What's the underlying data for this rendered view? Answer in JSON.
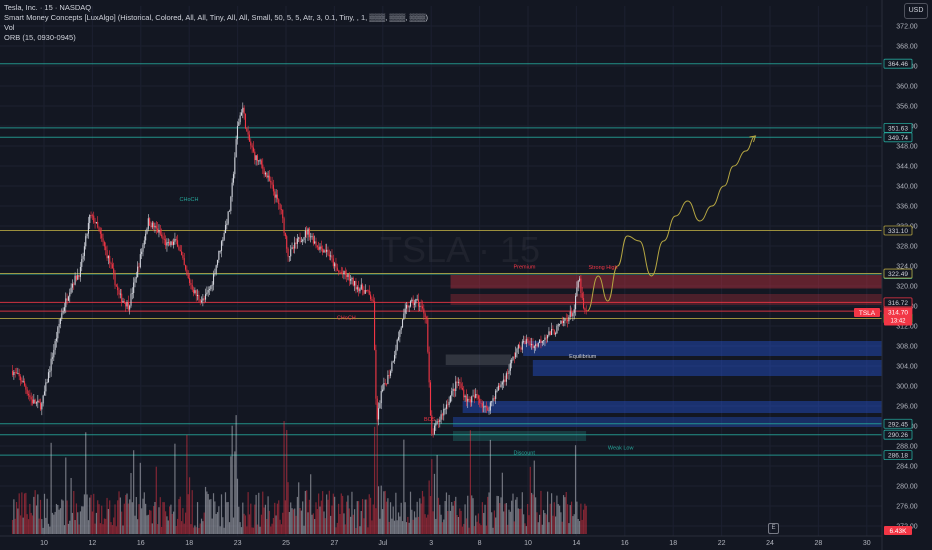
{
  "legend": {
    "title": "Tesla, Inc. · 15 · NASDAQ",
    "indicator_smc": "Smart Money Concepts [LuxAlgo] (Historical, Colored, All, All, Tiny, All, All, Small, 50, 5, 5, Atr, 3, 0.1, Tiny, , 1, ▒▒▒, ▒▒▒, ▒▒▒)",
    "indicator_vol": "Vol",
    "indicator_orb": "ORB (15, 0930-0945)"
  },
  "currency_button": "USD",
  "e_button": "E",
  "watermark": "TSLA · 15",
  "colors": {
    "background": "#131722",
    "up": "#d1d4dc",
    "down": "#f23645",
    "teal": "#26a69a",
    "olive": "#b5a642",
    "blue_zone": "#2962ff",
    "red_zone": "#f23645"
  },
  "chart_data": {
    "type": "candlestick",
    "ylim": [
      270,
      376
    ],
    "price_ticks": [
      272,
      276,
      280,
      284,
      288,
      292,
      296,
      300,
      304,
      308,
      312,
      316,
      320,
      324,
      328,
      332,
      336,
      340,
      344,
      348,
      352,
      356,
      360,
      364,
      368,
      372
    ],
    "date_ticks": [
      {
        "label": "10",
        "day": 9
      },
      {
        "label": "12",
        "day": 11
      },
      {
        "label": "16",
        "day": 13
      },
      {
        "label": "18",
        "day": 15
      },
      {
        "label": "23",
        "day": 17
      },
      {
        "label": "25",
        "day": 19
      },
      {
        "label": "27",
        "day": 21
      },
      {
        "label": "Jul",
        "day": 23
      },
      {
        "label": "3",
        "day": 25
      },
      {
        "label": "8",
        "day": 27
      },
      {
        "label": "10",
        "day": 29
      },
      {
        "label": "14",
        "day": 31
      },
      {
        "label": "16",
        "day": 33
      },
      {
        "label": "18",
        "day": 35
      },
      {
        "label": "22",
        "day": 37
      },
      {
        "label": "24",
        "day": 39
      },
      {
        "label": "28",
        "day": 41
      },
      {
        "label": "30",
        "day": 43
      }
    ],
    "candle_start_day": 7.7,
    "candle_end_day": 31.45,
    "price_path": [
      [
        7.7,
        303
      ],
      [
        8.1,
        301
      ],
      [
        8.5,
        297
      ],
      [
        8.9,
        296
      ],
      [
        9.3,
        305
      ],
      [
        9.7,
        314
      ],
      [
        10.1,
        320
      ],
      [
        10.5,
        323
      ],
      [
        10.9,
        334
      ],
      [
        11.1,
        333
      ],
      [
        11.4,
        329
      ],
      [
        11.7,
        325
      ],
      [
        12.1,
        318
      ],
      [
        12.5,
        316
      ],
      [
        12.9,
        324
      ],
      [
        13.3,
        333
      ],
      [
        13.7,
        331
      ],
      [
        14.1,
        328
      ],
      [
        14.5,
        329
      ],
      [
        14.9,
        322
      ],
      [
        15.3,
        318
      ],
      [
        15.6,
        317
      ],
      [
        15.9,
        320
      ],
      [
        16.3,
        328
      ],
      [
        16.7,
        336
      ],
      [
        17.0,
        352
      ],
      [
        17.2,
        356
      ],
      [
        17.4,
        350
      ],
      [
        17.7,
        346
      ],
      [
        18.0,
        344
      ],
      [
        18.4,
        340
      ],
      [
        18.8,
        335
      ],
      [
        19.1,
        326
      ],
      [
        19.5,
        329
      ],
      [
        19.9,
        331
      ],
      [
        20.3,
        328
      ],
      [
        20.7,
        327
      ],
      [
        21.1,
        323
      ],
      [
        21.5,
        322
      ],
      [
        21.9,
        320
      ],
      [
        22.3,
        319
      ],
      [
        22.6,
        317
      ],
      [
        22.75,
        292
      ],
      [
        22.9,
        298
      ],
      [
        23.3,
        303
      ],
      [
        23.7,
        311
      ],
      [
        24.0,
        316
      ],
      [
        24.4,
        317
      ],
      [
        24.8,
        314
      ],
      [
        25.0,
        290
      ],
      [
        25.4,
        294
      ],
      [
        25.7,
        297
      ],
      [
        26.1,
        301
      ],
      [
        26.5,
        297
      ],
      [
        26.9,
        298
      ],
      [
        27.3,
        295
      ],
      [
        27.7,
        299
      ],
      [
        28.1,
        302
      ],
      [
        28.5,
        307
      ],
      [
        28.9,
        309
      ],
      [
        29.3,
        308
      ],
      [
        29.7,
        310
      ],
      [
        30.1,
        311
      ],
      [
        30.5,
        313
      ],
      [
        30.9,
        315
      ],
      [
        31.1,
        322
      ],
      [
        31.3,
        315
      ],
      [
        31.45,
        314.7
      ]
    ],
    "projection_path": [
      [
        31.45,
        315
      ],
      [
        31.9,
        322
      ],
      [
        32.3,
        317
      ],
      [
        32.7,
        324
      ],
      [
        33.1,
        330
      ],
      [
        33.6,
        329
      ],
      [
        34.1,
        322
      ],
      [
        34.6,
        329
      ],
      [
        35.1,
        334
      ],
      [
        35.6,
        337
      ],
      [
        36.1,
        333
      ],
      [
        36.6,
        336
      ],
      [
        37.1,
        340
      ],
      [
        37.5,
        344
      ],
      [
        38.0,
        347
      ],
      [
        38.4,
        350
      ]
    ],
    "levels": [
      {
        "price": 364.46,
        "label": "364.46",
        "color": "#26a69a",
        "dashed": false
      },
      {
        "price": 351.63,
        "label": "351.63",
        "color": "#26a69a",
        "dashed": false
      },
      {
        "price": 349.74,
        "label": "349.74",
        "color": "#26a69a",
        "dashed": false
      },
      {
        "price": 331.1,
        "label": "331.10",
        "color": "#b5a642",
        "dashed": false
      },
      {
        "price": 322.39,
        "label": "322.39",
        "color": "#26a69a",
        "dashed": false
      },
      {
        "price": 322.49,
        "label": "322.49",
        "color": "#b5a642",
        "dashed": false
      },
      {
        "price": 314.97,
        "label": "314.97",
        "color": "#f23645",
        "dashed": false
      },
      {
        "price": 316.72,
        "label": "316.72",
        "color": "#f23645",
        "dashed": false
      },
      {
        "price": 313.5,
        "label": "313.50",
        "color": "#b5a642",
        "dashed": false
      },
      {
        "price": 292.45,
        "label": "292.45",
        "color": "#26a69a",
        "dashed": false
      },
      {
        "price": 290.26,
        "label": "290.26",
        "color": "#26a69a",
        "dashed": false
      },
      {
        "price": 286.18,
        "label": "286.18",
        "color": "#26a69a",
        "dashed": false
      }
    ],
    "current_price": {
      "label": "TSLA",
      "value": "314.70",
      "countdown": "13:42"
    },
    "volume_last": "6.43K",
    "zones": [
      {
        "from_day": 25.8,
        "to_day": 44.5,
        "low": 319.5,
        "high": 322.2,
        "color": "#f23645",
        "alpha": 0.35
      },
      {
        "from_day": 25.8,
        "to_day": 44.5,
        "low": 316.2,
        "high": 318.4,
        "color": "#f23645",
        "alpha": 0.25
      },
      {
        "from_day": 25.6,
        "to_day": 28.3,
        "low": 304.2,
        "high": 306.3,
        "color": "#787b86",
        "alpha": 0.3
      },
      {
        "from_day": 28.8,
        "to_day": 44.5,
        "low": 306.0,
        "high": 309.0,
        "color": "#2962ff",
        "alpha": 0.35
      },
      {
        "from_day": 29.2,
        "to_day": 44.5,
        "low": 302.0,
        "high": 305.2,
        "color": "#2962ff",
        "alpha": 0.35
      },
      {
        "from_day": 26.3,
        "to_day": 44.5,
        "low": 294.6,
        "high": 297.0,
        "color": "#2962ff",
        "alpha": 0.35
      },
      {
        "from_day": 25.9,
        "to_day": 44.5,
        "low": 291.8,
        "high": 293.8,
        "color": "#2962ff",
        "alpha": 0.3
      },
      {
        "from_day": 25.9,
        "to_day": 31.4,
        "low": 289.0,
        "high": 291.0,
        "color": "#26a69a",
        "alpha": 0.25
      }
    ],
    "annotations": [
      {
        "text": "CHoCH",
        "day": 14.6,
        "price": 337.0,
        "color": "#26a69a"
      },
      {
        "text": "CHoCH",
        "day": 21.1,
        "price": 313.3,
        "color": "#f23645"
      },
      {
        "text": "BOS",
        "day": 24.7,
        "price": 293.0,
        "color": "#f23645"
      },
      {
        "text": "Premium",
        "day": 28.4,
        "price": 323.5,
        "color": "#f23645"
      },
      {
        "text": "Equilibrium",
        "day": 30.7,
        "price": 305.6,
        "color": "#d1d4dc"
      },
      {
        "text": "Discount",
        "day": 28.4,
        "price": 286.3,
        "color": "#26a69a"
      },
      {
        "text": "Strong High",
        "day": 31.5,
        "price": 323.4,
        "color": "#f23645"
      },
      {
        "text": "Weak Low",
        "day": 32.3,
        "price": 287.3,
        "color": "#26a69a"
      }
    ]
  }
}
